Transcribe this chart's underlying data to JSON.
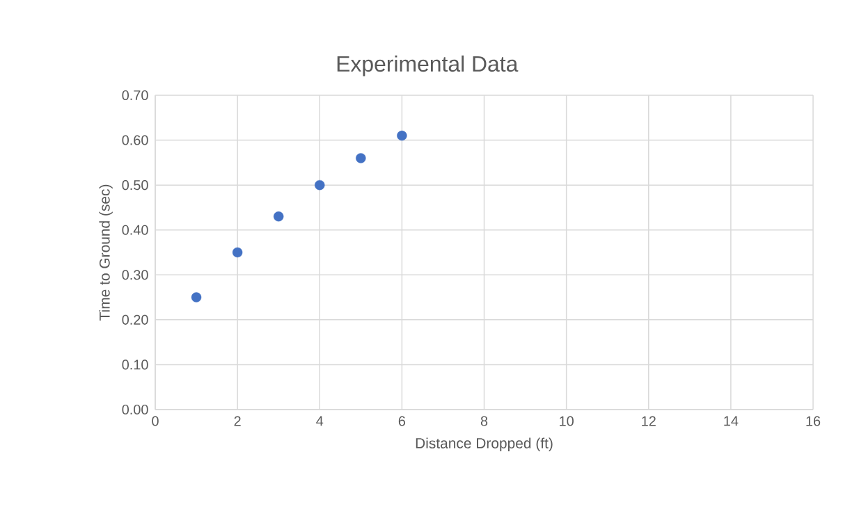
{
  "chart_data": {
    "type": "scatter",
    "title": "Experimental Data",
    "xlabel": "Distance Dropped (ft)",
    "ylabel": "Time to Ground (sec)",
    "x": [
      1,
      2,
      3,
      4,
      5,
      6
    ],
    "values": [
      0.25,
      0.35,
      0.43,
      0.5,
      0.56,
      0.61
    ],
    "color": "#4472c4",
    "marker": "circle",
    "grid": true,
    "legend": false,
    "xlim": [
      0,
      16
    ],
    "xticks": [
      0,
      2,
      4,
      6,
      8,
      10,
      12,
      14,
      16
    ],
    "ylim": [
      0,
      0.7
    ],
    "yticks": [
      {
        "value": 0,
        "label": "0.00"
      },
      {
        "value": 0.1,
        "label": "0.10"
      },
      {
        "value": 0.2,
        "label": "0.20"
      },
      {
        "value": 0.3,
        "label": "0.30"
      },
      {
        "value": 0.4,
        "label": "0.40"
      },
      {
        "value": 0.5,
        "label": "0.50"
      },
      {
        "value": 0.6,
        "label": "0.60"
      },
      {
        "value": 0.7,
        "label": "0.70"
      }
    ]
  }
}
